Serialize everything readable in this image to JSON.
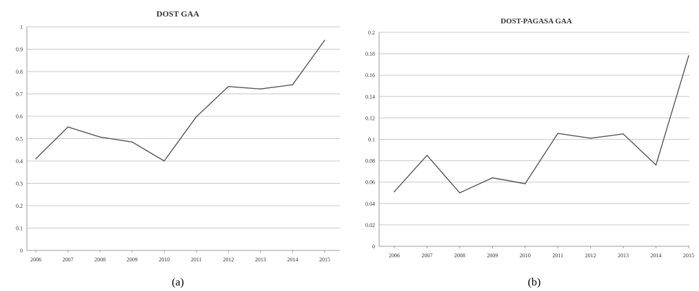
{
  "chart_data": [
    {
      "type": "line",
      "title": "DOST GAA",
      "panel_label": "(a)",
      "categories": [
        "2006",
        "2007",
        "2008",
        "2009",
        "2010",
        "2011",
        "2012",
        "2013",
        "2014",
        "2015"
      ],
      "series": [
        {
          "values": [
            0.41,
            0.552,
            0.507,
            0.485,
            0.4,
            0.598,
            0.733,
            0.722,
            0.741,
            0.94
          ]
        }
      ],
      "ylim": [
        0,
        1
      ],
      "yticks": [
        0,
        0.1,
        0.2,
        0.3,
        0.4,
        0.5,
        0.6,
        0.7,
        0.8,
        0.9,
        1
      ],
      "ytick_labels": [
        "0",
        "0.1",
        "0.2",
        "0.3",
        "0.4",
        "0.5",
        "0.6",
        "0.7",
        "0.8",
        "0.9",
        "1"
      ],
      "xlabel": "",
      "ylabel": "",
      "grid": true,
      "line_color": "#555555"
    },
    {
      "type": "line",
      "title": "DOST-PAGASA GAA",
      "panel_label": "(b)",
      "categories": [
        "2006",
        "2007",
        "2008",
        "2009",
        "2010",
        "2011",
        "2012",
        "2013",
        "2014",
        "2015"
      ],
      "series": [
        {
          "values": [
            0.051,
            0.085,
            0.05,
            0.064,
            0.0585,
            0.1055,
            0.101,
            0.105,
            0.076,
            0.178
          ]
        }
      ],
      "ylim": [
        0,
        0.2
      ],
      "yticks": [
        0,
        0.02,
        0.04,
        0.06,
        0.08,
        0.1,
        0.12,
        0.14,
        0.16,
        0.18,
        0.2
      ],
      "ytick_labels": [
        "0",
        "0.02",
        "0.04",
        "0.06",
        "0.08",
        "0.1",
        "0.12",
        "0.14",
        "0.16",
        "0.18",
        "0.2"
      ],
      "xlabel": "",
      "ylabel": "",
      "grid": true,
      "line_color": "#555555"
    }
  ]
}
